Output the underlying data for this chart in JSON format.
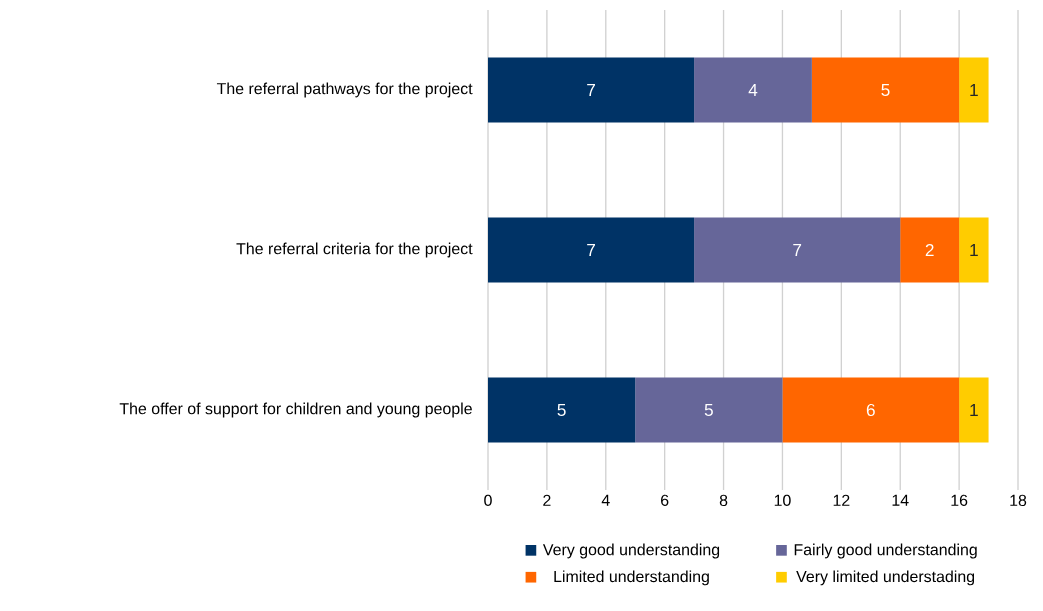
{
  "chart_data": {
    "type": "bar",
    "orientation": "horizontal",
    "stacked": true,
    "data_labels": true,
    "grid": "x",
    "legend": "bottom",
    "categories": [
      "The referral pathways for the project",
      "The referral criteria for the project",
      "The offer of support for children and young people"
    ],
    "series": [
      {
        "name": "Very good understanding",
        "color": "#003366",
        "values": [
          7,
          7,
          5
        ]
      },
      {
        "name": "Fairly good understanding",
        "color": "#666699",
        "values": [
          4,
          7,
          5
        ]
      },
      {
        "name": "Limited understanding",
        "color": "#ff6600",
        "values": [
          5,
          2,
          6
        ]
      },
      {
        "name": "Very limited understading",
        "color": "#ffcc00",
        "values": [
          1,
          1,
          1
        ]
      }
    ],
    "xlim": [
      0,
      18
    ],
    "xticks": [
      0,
      2,
      4,
      6,
      8,
      10,
      12,
      14,
      16,
      18
    ]
  }
}
